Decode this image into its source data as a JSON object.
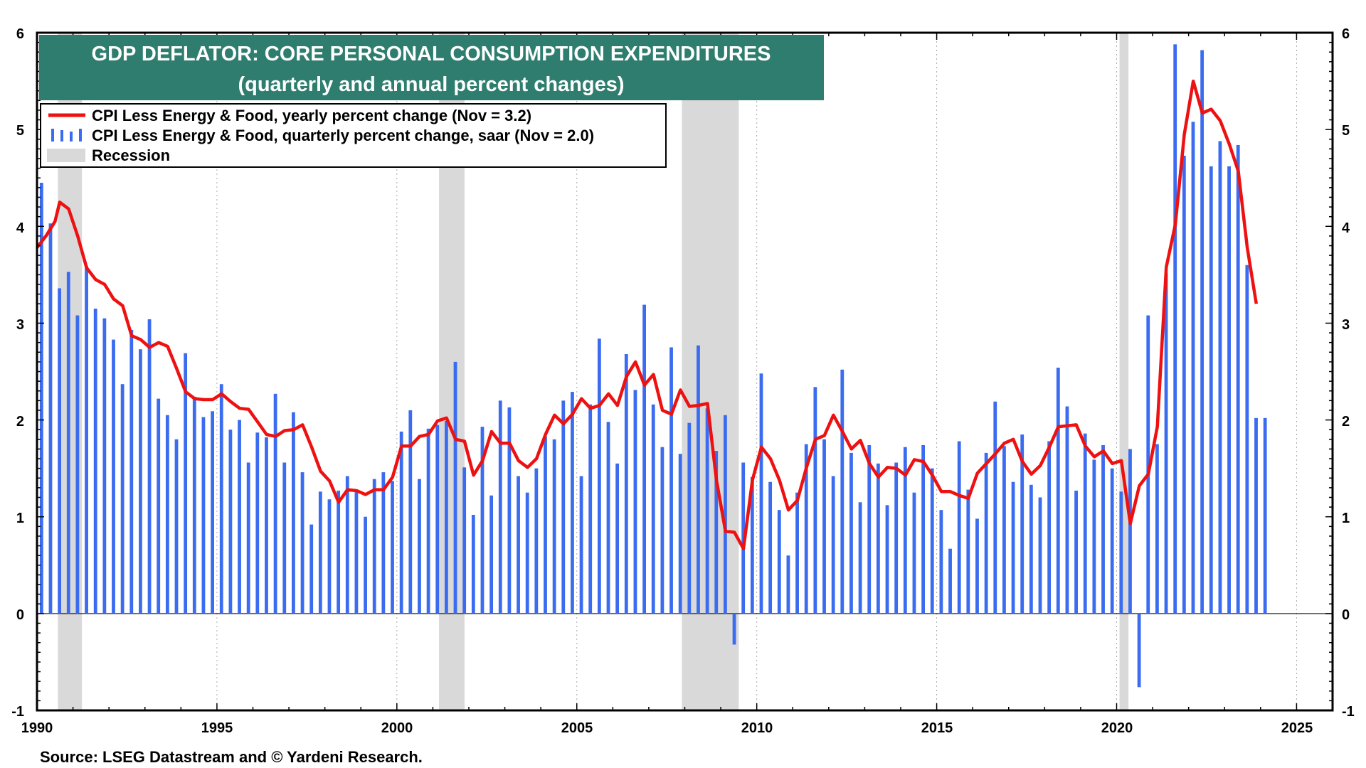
{
  "chart_data": {
    "type": "bar+line",
    "title": "GDP DEFLATOR: CORE PERSONAL CONSUMPTION EXPENDITURES",
    "subtitle": "(quarterly and annual percent changes)",
    "source": "Source: LSEG Datastream and © Yardeni Research.",
    "legend": {
      "line_label": "CPI Less Energy & Food,  yearly percent change (Nov = 3.2)",
      "bar_label": "CPI Less Energy & Food, quarterly percent change, saar  (Nov = 2.0)",
      "recession_label": "Recession",
      "placement": "top-left"
    },
    "colors": {
      "line": "#ee1111",
      "bars": "#3b6cf0",
      "recession": "#d9d9d9",
      "title_bg": "#2e7d6e",
      "grid": "#aaaaaa"
    },
    "xlim": [
      1990,
      2026
    ],
    "ylim": [
      -1,
      6
    ],
    "x_ticks": [
      "1990",
      "1995",
      "2000",
      "2005",
      "2010",
      "2015",
      "2020",
      "2025"
    ],
    "y_ticks": [
      "-1",
      "0",
      "1",
      "2",
      "3",
      "4",
      "5",
      "6"
    ],
    "recessions": [
      [
        1990.58,
        1991.25
      ],
      [
        2001.17,
        2001.88
      ],
      [
        2007.92,
        2009.5
      ],
      [
        2020.08,
        2020.33
      ]
    ],
    "quarterly_bars": {
      "start": 1990.125,
      "step": 0.25,
      "values": [
        4.45,
        4.03,
        3.36,
        3.53,
        3.08,
        3.59,
        3.15,
        3.05,
        2.83,
        2.37,
        2.93,
        2.73,
        3.04,
        2.22,
        2.05,
        1.8,
        2.69,
        2.24,
        2.03,
        2.09,
        2.37,
        1.9,
        2.0,
        1.56,
        1.87,
        1.82,
        2.27,
        1.56,
        2.08,
        1.46,
        0.92,
        1.26,
        1.18,
        1.27,
        1.42,
        1.28,
        1.0,
        1.39,
        1.46,
        1.37,
        1.88,
        2.1,
        1.39,
        1.91,
        1.95,
        1.99,
        2.6,
        1.51,
        1.02,
        1.93,
        1.22,
        2.2,
        2.13,
        1.42,
        1.25,
        1.5,
        1.83,
        1.8,
        2.2,
        2.29,
        1.42,
        2.16,
        2.84,
        1.98,
        1.55,
        2.68,
        2.31,
        3.19,
        2.16,
        1.72,
        2.75,
        1.65,
        1.97,
        2.77,
        2.12,
        1.68,
        2.05,
        -0.32,
        1.56,
        1.41,
        2.48,
        1.36,
        1.07,
        0.6,
        1.25,
        1.75,
        2.34,
        1.8,
        1.42,
        2.52,
        1.66,
        1.15,
        1.74,
        1.55,
        1.12,
        1.56,
        1.72,
        1.25,
        1.74,
        1.5,
        1.07,
        0.67,
        1.78,
        1.28,
        0.98,
        1.66,
        2.19,
        1.73,
        1.36,
        1.85,
        1.33,
        1.2,
        1.78,
        2.54,
        2.14,
        1.27,
        1.86,
        1.59,
        1.74,
        1.5,
        1.26,
        1.7,
        -0.76,
        3.08,
        1.75,
        3.52,
        5.88,
        4.73,
        5.08,
        5.82,
        4.62,
        4.88,
        4.62,
        4.84,
        3.6,
        2.02,
        2.02
      ]
    },
    "yearly_line": {
      "points": [
        [
          1990.0,
          3.78
        ],
        [
          1990.25,
          3.9
        ],
        [
          1990.5,
          4.05
        ],
        [
          1990.63,
          4.25
        ],
        [
          1990.88,
          4.18
        ],
        [
          1991.13,
          3.9
        ],
        [
          1991.38,
          3.57
        ],
        [
          1991.63,
          3.45
        ],
        [
          1991.88,
          3.4
        ],
        [
          1992.13,
          3.25
        ],
        [
          1992.38,
          3.18
        ],
        [
          1992.63,
          2.87
        ],
        [
          1992.88,
          2.83
        ],
        [
          1993.13,
          2.75
        ],
        [
          1993.38,
          2.8
        ],
        [
          1993.63,
          2.76
        ],
        [
          1993.88,
          2.53
        ],
        [
          1994.13,
          2.29
        ],
        [
          1994.38,
          2.22
        ],
        [
          1994.63,
          2.21
        ],
        [
          1994.88,
          2.21
        ],
        [
          1995.13,
          2.27
        ],
        [
          1995.38,
          2.19
        ],
        [
          1995.63,
          2.12
        ],
        [
          1995.88,
          2.11
        ],
        [
          1996.13,
          1.98
        ],
        [
          1996.38,
          1.85
        ],
        [
          1996.63,
          1.83
        ],
        [
          1996.88,
          1.89
        ],
        [
          1997.13,
          1.9
        ],
        [
          1997.38,
          1.95
        ],
        [
          1997.63,
          1.72
        ],
        [
          1997.88,
          1.47
        ],
        [
          1998.13,
          1.37
        ],
        [
          1998.38,
          1.15
        ],
        [
          1998.63,
          1.28
        ],
        [
          1998.88,
          1.27
        ],
        [
          1999.13,
          1.23
        ],
        [
          1999.38,
          1.28
        ],
        [
          1999.63,
          1.28
        ],
        [
          1999.88,
          1.41
        ],
        [
          2000.13,
          1.73
        ],
        [
          2000.38,
          1.73
        ],
        [
          2000.63,
          1.83
        ],
        [
          2000.88,
          1.85
        ],
        [
          2001.13,
          1.99
        ],
        [
          2001.38,
          2.02
        ],
        [
          2001.63,
          1.8
        ],
        [
          2001.88,
          1.78
        ],
        [
          2002.13,
          1.43
        ],
        [
          2002.38,
          1.58
        ],
        [
          2002.63,
          1.88
        ],
        [
          2002.88,
          1.76
        ],
        [
          2003.13,
          1.76
        ],
        [
          2003.38,
          1.58
        ],
        [
          2003.63,
          1.51
        ],
        [
          2003.88,
          1.6
        ],
        [
          2004.13,
          1.85
        ],
        [
          2004.38,
          2.05
        ],
        [
          2004.63,
          1.96
        ],
        [
          2004.88,
          2.06
        ],
        [
          2005.13,
          2.22
        ],
        [
          2005.38,
          2.12
        ],
        [
          2005.63,
          2.15
        ],
        [
          2005.88,
          2.27
        ],
        [
          2006.13,
          2.15
        ],
        [
          2006.38,
          2.45
        ],
        [
          2006.63,
          2.6
        ],
        [
          2006.88,
          2.36
        ],
        [
          2007.13,
          2.47
        ],
        [
          2007.38,
          2.1
        ],
        [
          2007.63,
          2.06
        ],
        [
          2007.88,
          2.31
        ],
        [
          2008.13,
          2.14
        ],
        [
          2008.38,
          2.15
        ],
        [
          2008.63,
          2.17
        ],
        [
          2008.88,
          1.38
        ],
        [
          2009.13,
          0.85
        ],
        [
          2009.38,
          0.84
        ],
        [
          2009.63,
          0.67
        ],
        [
          2009.88,
          1.38
        ],
        [
          2010.13,
          1.72
        ],
        [
          2010.38,
          1.6
        ],
        [
          2010.63,
          1.38
        ],
        [
          2010.88,
          1.07
        ],
        [
          2011.13,
          1.17
        ],
        [
          2011.38,
          1.51
        ],
        [
          2011.63,
          1.8
        ],
        [
          2011.88,
          1.84
        ],
        [
          2012.13,
          2.05
        ],
        [
          2012.38,
          1.88
        ],
        [
          2012.63,
          1.7
        ],
        [
          2012.88,
          1.79
        ],
        [
          2013.13,
          1.55
        ],
        [
          2013.38,
          1.41
        ],
        [
          2013.63,
          1.51
        ],
        [
          2013.88,
          1.5
        ],
        [
          2014.13,
          1.43
        ],
        [
          2014.38,
          1.59
        ],
        [
          2014.63,
          1.57
        ],
        [
          2014.88,
          1.43
        ],
        [
          2015.13,
          1.26
        ],
        [
          2015.38,
          1.26
        ],
        [
          2015.63,
          1.22
        ],
        [
          2015.88,
          1.19
        ],
        [
          2016.13,
          1.45
        ],
        [
          2016.38,
          1.55
        ],
        [
          2016.63,
          1.65
        ],
        [
          2016.88,
          1.76
        ],
        [
          2017.13,
          1.8
        ],
        [
          2017.38,
          1.57
        ],
        [
          2017.63,
          1.44
        ],
        [
          2017.88,
          1.53
        ],
        [
          2018.13,
          1.72
        ],
        [
          2018.38,
          1.93
        ],
        [
          2018.63,
          1.94
        ],
        [
          2018.88,
          1.95
        ],
        [
          2019.13,
          1.73
        ],
        [
          2019.38,
          1.62
        ],
        [
          2019.63,
          1.68
        ],
        [
          2019.88,
          1.55
        ],
        [
          2020.13,
          1.58
        ],
        [
          2020.38,
          0.93
        ],
        [
          2020.63,
          1.32
        ],
        [
          2020.88,
          1.44
        ],
        [
          2021.13,
          1.93
        ],
        [
          2021.38,
          3.58
        ],
        [
          2021.63,
          4.02
        ],
        [
          2021.88,
          4.95
        ],
        [
          2022.13,
          5.5
        ],
        [
          2022.38,
          5.17
        ],
        [
          2022.63,
          5.21
        ],
        [
          2022.88,
          5.09
        ],
        [
          2023.13,
          4.85
        ],
        [
          2023.38,
          4.57
        ],
        [
          2023.63,
          3.78
        ],
        [
          2023.88,
          3.2
        ]
      ]
    }
  }
}
